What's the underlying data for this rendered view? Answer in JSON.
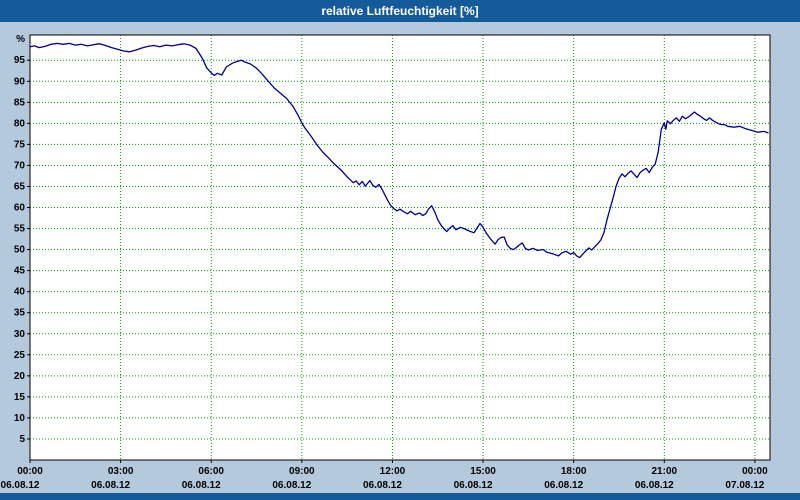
{
  "header": {
    "title": "relative Luftfeuchtigkeit [%]"
  },
  "colors": {
    "titlebar_bg": "#155a9b",
    "window_bg": "#b5c9dd",
    "plot_bg": "#ffffff",
    "grid": "#00a000",
    "line": "#000099",
    "axis_text": "#000000",
    "title_text": "#ffffff"
  },
  "chart_data": {
    "type": "line",
    "title": "relative Luftfeuchtigkeit [%]",
    "ylabel": "%",
    "ylim": [
      0,
      101
    ],
    "xlim": [
      0,
      24.5
    ],
    "grid": "dotted",
    "legend": "none",
    "y_ticks": [
      5,
      10,
      15,
      20,
      25,
      30,
      35,
      40,
      45,
      50,
      55,
      60,
      65,
      70,
      75,
      80,
      85,
      90,
      95
    ],
    "x_ticks": [
      {
        "t": 0,
        "time": "00:00",
        "date": "06.08.12"
      },
      {
        "t": 3,
        "time": "03:00",
        "date": "06.08.12"
      },
      {
        "t": 6,
        "time": "06:00",
        "date": "06.08.12"
      },
      {
        "t": 9,
        "time": "09:00",
        "date": "06.08.12"
      },
      {
        "t": 12,
        "time": "12:00",
        "date": "06.08.12"
      },
      {
        "t": 15,
        "time": "15:00",
        "date": "06.08.12"
      },
      {
        "t": 18,
        "time": "18:00",
        "date": "06.08.12"
      },
      {
        "t": 21,
        "time": "21:00",
        "date": "06.08.12"
      },
      {
        "t": 24,
        "time": "00:00",
        "date": "07.08.12"
      }
    ],
    "series": [
      {
        "name": "relative Luftfeuchtigkeit",
        "points": [
          [
            0,
            98.2
          ],
          [
            0.15,
            98.4
          ],
          [
            0.3,
            98
          ],
          [
            0.5,
            98.3
          ],
          [
            0.7,
            98.8
          ],
          [
            0.9,
            99
          ],
          [
            1.1,
            98.8
          ],
          [
            1.3,
            99
          ],
          [
            1.5,
            98.6
          ],
          [
            1.7,
            98.8
          ],
          [
            1.9,
            98.4
          ],
          [
            2.1,
            98.7
          ],
          [
            2.3,
            98.9
          ],
          [
            2.5,
            98.5
          ],
          [
            2.7,
            98
          ],
          [
            2.9,
            97.6
          ],
          [
            3.1,
            97.2
          ],
          [
            3.3,
            97
          ],
          [
            3.5,
            97.4
          ],
          [
            3.7,
            97.9
          ],
          [
            3.9,
            98.3
          ],
          [
            4.1,
            98.5
          ],
          [
            4.3,
            98.2
          ],
          [
            4.5,
            98.6
          ],
          [
            4.7,
            98.4
          ],
          [
            4.9,
            98.7
          ],
          [
            5.1,
            98.9
          ],
          [
            5.3,
            98.6
          ],
          [
            5.5,
            97.8
          ],
          [
            5.7,
            95.5
          ],
          [
            5.85,
            93.2
          ],
          [
            6,
            92
          ],
          [
            6.1,
            91.4
          ],
          [
            6.2,
            91.9
          ],
          [
            6.35,
            91.5
          ],
          [
            6.5,
            93.4
          ],
          [
            6.7,
            94.3
          ],
          [
            6.85,
            94.7
          ],
          [
            7,
            95
          ],
          [
            7.1,
            94.6
          ],
          [
            7.3,
            94.1
          ],
          [
            7.5,
            93.1
          ],
          [
            7.7,
            91.6
          ],
          [
            7.9,
            89.9
          ],
          [
            8.1,
            88.3
          ],
          [
            8.3,
            87.1
          ],
          [
            8.5,
            85.9
          ],
          [
            8.7,
            84.1
          ],
          [
            8.9,
            81.6
          ],
          [
            9,
            80.1
          ],
          [
            9.1,
            78.9
          ],
          [
            9.3,
            77
          ],
          [
            9.5,
            74.9
          ],
          [
            9.7,
            73.1
          ],
          [
            9.9,
            71.7
          ],
          [
            10,
            70.9
          ],
          [
            10.1,
            70.2
          ],
          [
            10.3,
            68.9
          ],
          [
            10.5,
            67.3
          ],
          [
            10.7,
            65.9
          ],
          [
            10.8,
            66.3
          ],
          [
            10.9,
            65.4
          ],
          [
            11,
            66.2
          ],
          [
            11.1,
            65.1
          ],
          [
            11.25,
            66.4
          ],
          [
            11.35,
            65.3
          ],
          [
            11.45,
            64.8
          ],
          [
            11.55,
            65.5
          ],
          [
            11.65,
            64.4
          ],
          [
            11.75,
            63
          ],
          [
            11.85,
            61.6
          ],
          [
            11.95,
            60.4
          ],
          [
            12.05,
            59.7
          ],
          [
            12.15,
            59.2
          ],
          [
            12.25,
            59.6
          ],
          [
            12.4,
            58.9
          ],
          [
            12.5,
            58.5
          ],
          [
            12.6,
            59.1
          ],
          [
            12.75,
            58.3
          ],
          [
            12.9,
            58.7
          ],
          [
            13,
            58.1
          ],
          [
            13.1,
            58.5
          ],
          [
            13.2,
            59.7
          ],
          [
            13.3,
            60.4
          ],
          [
            13.4,
            59
          ],
          [
            13.5,
            57.1
          ],
          [
            13.6,
            55.9
          ],
          [
            13.7,
            55
          ],
          [
            13.8,
            54.3
          ],
          [
            13.9,
            55.1
          ],
          [
            14,
            55.7
          ],
          [
            14.1,
            54.7
          ],
          [
            14.25,
            55.3
          ],
          [
            14.4,
            54.9
          ],
          [
            14.55,
            54.4
          ],
          [
            14.7,
            54
          ],
          [
            14.8,
            55.1
          ],
          [
            14.9,
            56.2
          ],
          [
            15,
            55.3
          ],
          [
            15.1,
            54
          ],
          [
            15.2,
            53
          ],
          [
            15.3,
            52.1
          ],
          [
            15.4,
            51.3
          ],
          [
            15.5,
            52.4
          ],
          [
            15.6,
            52.9
          ],
          [
            15.7,
            53
          ],
          [
            15.8,
            51.1
          ],
          [
            15.9,
            50.3
          ],
          [
            16,
            50
          ],
          [
            16.1,
            50.5
          ],
          [
            16.2,
            51.1
          ],
          [
            16.3,
            51.6
          ],
          [
            16.4,
            50.3
          ],
          [
            16.5,
            49.9
          ],
          [
            16.65,
            50.3
          ],
          [
            16.8,
            49.8
          ],
          [
            17,
            50
          ],
          [
            17.1,
            49.4
          ],
          [
            17.3,
            49
          ],
          [
            17.5,
            48.5
          ],
          [
            17.6,
            49.2
          ],
          [
            17.75,
            49.6
          ],
          [
            17.9,
            48.9
          ],
          [
            18,
            49.3
          ],
          [
            18.1,
            48.5
          ],
          [
            18.2,
            48.1
          ],
          [
            18.3,
            48.9
          ],
          [
            18.4,
            49.7
          ],
          [
            18.5,
            50.4
          ],
          [
            18.6,
            49.9
          ],
          [
            18.7,
            50.7
          ],
          [
            18.8,
            51.4
          ],
          [
            18.9,
            52.3
          ],
          [
            19,
            54
          ],
          [
            19.1,
            57
          ],
          [
            19.2,
            59.6
          ],
          [
            19.3,
            62.1
          ],
          [
            19.4,
            65
          ],
          [
            19.5,
            66.9
          ],
          [
            19.6,
            68
          ],
          [
            19.7,
            67.3
          ],
          [
            19.8,
            68.1
          ],
          [
            19.9,
            68.7
          ],
          [
            20,
            67.9
          ],
          [
            20.1,
            67.1
          ],
          [
            20.2,
            68.3
          ],
          [
            20.3,
            68.9
          ],
          [
            20.4,
            69.3
          ],
          [
            20.5,
            68.3
          ],
          [
            20.6,
            69.5
          ],
          [
            20.7,
            70.3
          ],
          [
            20.8,
            73.2
          ],
          [
            20.85,
            76
          ],
          [
            20.9,
            78.6
          ],
          [
            21,
            80.1
          ],
          [
            21.05,
            78.6
          ],
          [
            21.1,
            80.6
          ],
          [
            21.2,
            79.9
          ],
          [
            21.3,
            80.7
          ],
          [
            21.4,
            81.3
          ],
          [
            21.5,
            80.5
          ],
          [
            21.6,
            81.7
          ],
          [
            21.7,
            81.1
          ],
          [
            21.8,
            81.5
          ],
          [
            21.9,
            82.1
          ],
          [
            22,
            82.7
          ],
          [
            22.1,
            82.1
          ],
          [
            22.2,
            81.7
          ],
          [
            22.3,
            81.1
          ],
          [
            22.4,
            80.7
          ],
          [
            22.5,
            81.3
          ],
          [
            22.6,
            80.7
          ],
          [
            22.7,
            80.3
          ],
          [
            22.8,
            79.9
          ],
          [
            22.9,
            79.7
          ],
          [
            23,
            79.7
          ],
          [
            23.1,
            79.3
          ],
          [
            23.3,
            79.1
          ],
          [
            23.5,
            79.3
          ],
          [
            23.7,
            78.7
          ],
          [
            23.9,
            78.3
          ],
          [
            24.1,
            77.9
          ],
          [
            24.3,
            78.1
          ],
          [
            24.45,
            77.7
          ]
        ]
      }
    ]
  }
}
